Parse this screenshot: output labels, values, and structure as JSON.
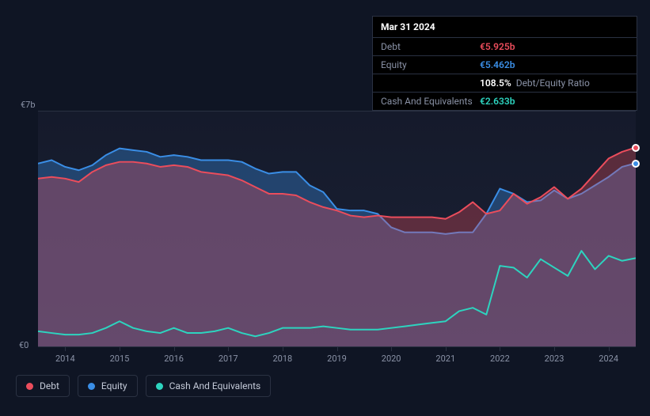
{
  "tooltip": {
    "date": "Mar 31 2024",
    "rows": [
      {
        "label": "Debt",
        "value": "€5.925b",
        "color": "#eb4d5c",
        "extra": ""
      },
      {
        "label": "Equity",
        "value": "€5.462b",
        "color": "#3a8ee6",
        "extra": ""
      },
      {
        "label": "",
        "value": "108.5%",
        "color": "#ffffff",
        "extra": "Debt/Equity Ratio"
      },
      {
        "label": "Cash And Equivalents",
        "value": "€2.633b",
        "color": "#2dd4bf",
        "extra": ""
      }
    ]
  },
  "chart": {
    "type": "area",
    "background_color": "#0f1524",
    "plot_bg_from": "#151a2b",
    "plot_bg_to": "#1b2236",
    "grid_color": "#2a3142",
    "y_top_label": "€7b",
    "y_bottom_label": "€0",
    "y_min": 0,
    "y_max": 7,
    "x_min": 2013.5,
    "x_max": 2024.5,
    "x_ticks": [
      2014,
      2015,
      2016,
      2017,
      2018,
      2019,
      2020,
      2021,
      2022,
      2023,
      2024
    ],
    "label_fontsize": 11,
    "label_color": "#8a92a6",
    "series": [
      {
        "name": "Equity",
        "color": "#3a8ee6",
        "fill": "rgba(58,142,230,0.35)",
        "points": [
          [
            2013.5,
            5.45
          ],
          [
            2013.75,
            5.55
          ],
          [
            2014.0,
            5.35
          ],
          [
            2014.25,
            5.25
          ],
          [
            2014.5,
            5.4
          ],
          [
            2014.75,
            5.7
          ],
          [
            2015.0,
            5.9
          ],
          [
            2015.25,
            5.85
          ],
          [
            2015.5,
            5.8
          ],
          [
            2015.75,
            5.65
          ],
          [
            2016.0,
            5.7
          ],
          [
            2016.25,
            5.65
          ],
          [
            2016.5,
            5.55
          ],
          [
            2016.75,
            5.55
          ],
          [
            2017.0,
            5.55
          ],
          [
            2017.25,
            5.5
          ],
          [
            2017.5,
            5.3
          ],
          [
            2017.75,
            5.15
          ],
          [
            2018.0,
            5.2
          ],
          [
            2018.25,
            5.2
          ],
          [
            2018.5,
            4.8
          ],
          [
            2018.75,
            4.6
          ],
          [
            2019.0,
            4.1
          ],
          [
            2019.25,
            4.05
          ],
          [
            2019.5,
            4.05
          ],
          [
            2019.75,
            3.95
          ],
          [
            2020.0,
            3.55
          ],
          [
            2020.25,
            3.4
          ],
          [
            2020.5,
            3.4
          ],
          [
            2020.75,
            3.4
          ],
          [
            2021.0,
            3.35
          ],
          [
            2021.25,
            3.4
          ],
          [
            2021.5,
            3.4
          ],
          [
            2021.75,
            3.95
          ],
          [
            2022.0,
            4.7
          ],
          [
            2022.25,
            4.55
          ],
          [
            2022.5,
            4.3
          ],
          [
            2022.75,
            4.35
          ],
          [
            2023.0,
            4.65
          ],
          [
            2023.25,
            4.4
          ],
          [
            2023.5,
            4.55
          ],
          [
            2023.75,
            4.8
          ],
          [
            2024.0,
            5.05
          ],
          [
            2024.25,
            5.35
          ],
          [
            2024.5,
            5.46
          ]
        ]
      },
      {
        "name": "Debt",
        "color": "#eb4d5c",
        "fill": "rgba(235,77,92,0.32)",
        "points": [
          [
            2013.5,
            5.0
          ],
          [
            2013.75,
            5.05
          ],
          [
            2014.0,
            5.0
          ],
          [
            2014.25,
            4.9
          ],
          [
            2014.5,
            5.2
          ],
          [
            2014.75,
            5.4
          ],
          [
            2015.0,
            5.5
          ],
          [
            2015.25,
            5.5
          ],
          [
            2015.5,
            5.45
          ],
          [
            2015.75,
            5.35
          ],
          [
            2016.0,
            5.4
          ],
          [
            2016.25,
            5.35
          ],
          [
            2016.5,
            5.2
          ],
          [
            2016.75,
            5.15
          ],
          [
            2017.0,
            5.1
          ],
          [
            2017.25,
            4.95
          ],
          [
            2017.5,
            4.75
          ],
          [
            2017.75,
            4.55
          ],
          [
            2018.0,
            4.55
          ],
          [
            2018.25,
            4.5
          ],
          [
            2018.5,
            4.3
          ],
          [
            2018.75,
            4.15
          ],
          [
            2019.0,
            4.05
          ],
          [
            2019.25,
            3.9
          ],
          [
            2019.5,
            3.85
          ],
          [
            2019.75,
            3.9
          ],
          [
            2020.0,
            3.85
          ],
          [
            2020.25,
            3.85
          ],
          [
            2020.5,
            3.85
          ],
          [
            2020.75,
            3.85
          ],
          [
            2021.0,
            3.8
          ],
          [
            2021.25,
            4.0
          ],
          [
            2021.5,
            4.3
          ],
          [
            2021.75,
            3.95
          ],
          [
            2022.0,
            4.05
          ],
          [
            2022.25,
            4.55
          ],
          [
            2022.5,
            4.25
          ],
          [
            2022.75,
            4.45
          ],
          [
            2023.0,
            4.75
          ],
          [
            2023.25,
            4.4
          ],
          [
            2023.5,
            4.7
          ],
          [
            2023.75,
            5.15
          ],
          [
            2024.0,
            5.6
          ],
          [
            2024.25,
            5.8
          ],
          [
            2024.5,
            5.93
          ]
        ]
      },
      {
        "name": "Cash And Equivalents",
        "color": "#2dd4bf",
        "fill": "rgba(45,212,191,0.0)",
        "points": [
          [
            2013.5,
            0.45
          ],
          [
            2013.75,
            0.4
          ],
          [
            2014.0,
            0.35
          ],
          [
            2014.25,
            0.35
          ],
          [
            2014.5,
            0.4
          ],
          [
            2014.75,
            0.55
          ],
          [
            2015.0,
            0.75
          ],
          [
            2015.25,
            0.55
          ],
          [
            2015.5,
            0.45
          ],
          [
            2015.75,
            0.4
          ],
          [
            2016.0,
            0.55
          ],
          [
            2016.25,
            0.4
          ],
          [
            2016.5,
            0.4
          ],
          [
            2016.75,
            0.45
          ],
          [
            2017.0,
            0.55
          ],
          [
            2017.25,
            0.4
          ],
          [
            2017.5,
            0.3
          ],
          [
            2017.75,
            0.4
          ],
          [
            2018.0,
            0.55
          ],
          [
            2018.25,
            0.55
          ],
          [
            2018.5,
            0.55
          ],
          [
            2018.75,
            0.6
          ],
          [
            2019.0,
            0.55
          ],
          [
            2019.25,
            0.5
          ],
          [
            2019.5,
            0.5
          ],
          [
            2019.75,
            0.5
          ],
          [
            2020.0,
            0.55
          ],
          [
            2020.25,
            0.6
          ],
          [
            2020.5,
            0.65
          ],
          [
            2020.75,
            0.7
          ],
          [
            2021.0,
            0.75
          ],
          [
            2021.25,
            1.05
          ],
          [
            2021.5,
            1.15
          ],
          [
            2021.75,
            0.95
          ],
          [
            2022.0,
            2.4
          ],
          [
            2022.25,
            2.35
          ],
          [
            2022.5,
            2.05
          ],
          [
            2022.75,
            2.6
          ],
          [
            2023.0,
            2.35
          ],
          [
            2023.25,
            2.1
          ],
          [
            2023.5,
            2.85
          ],
          [
            2023.75,
            2.3
          ],
          [
            2024.0,
            2.7
          ],
          [
            2024.25,
            2.55
          ],
          [
            2024.5,
            2.63
          ]
        ]
      }
    ],
    "markers": [
      {
        "series": "Debt",
        "x": 2024.5,
        "y": 5.93,
        "color": "#eb4d5c"
      },
      {
        "series": "Equity",
        "x": 2024.5,
        "y": 5.46,
        "color": "#3a8ee6"
      }
    ]
  },
  "legend": [
    {
      "label": "Debt",
      "color": "#eb4d5c"
    },
    {
      "label": "Equity",
      "color": "#3a8ee6"
    },
    {
      "label": "Cash And Equivalents",
      "color": "#2dd4bf"
    }
  ]
}
